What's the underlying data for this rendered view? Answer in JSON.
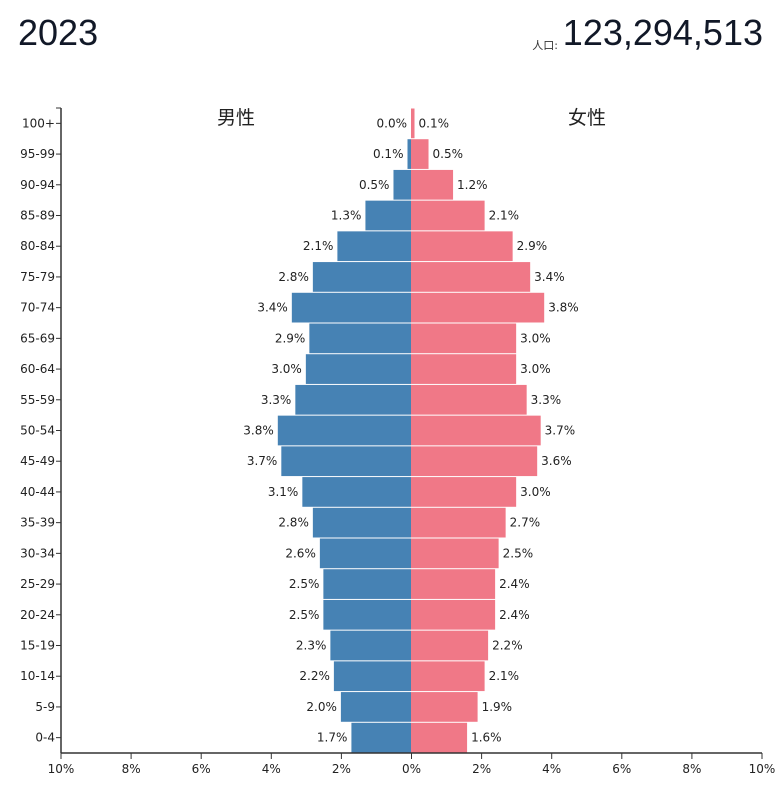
{
  "header": {
    "year": "2023",
    "population_label": "人口:",
    "population": "123,294,513"
  },
  "chart_data": {
    "type": "bar",
    "title": "2023",
    "orientation": "horizontal-population-pyramid",
    "categories": [
      "100+",
      "95-99",
      "90-94",
      "85-89",
      "80-84",
      "75-79",
      "70-74",
      "65-69",
      "60-64",
      "55-59",
      "50-54",
      "45-49",
      "40-44",
      "35-39",
      "30-34",
      "25-29",
      "20-24",
      "15-19",
      "10-14",
      "5-9",
      "0-4"
    ],
    "series": [
      {
        "name": "男性",
        "color": "#4682b4",
        "values": [
          0.0,
          0.1,
          0.5,
          1.3,
          2.1,
          2.8,
          3.4,
          2.9,
          3.0,
          3.3,
          3.8,
          3.7,
          3.1,
          2.8,
          2.6,
          2.5,
          2.5,
          2.3,
          2.2,
          2.0,
          1.7
        ]
      },
      {
        "name": "女性",
        "color": "#f07887",
        "values": [
          0.1,
          0.5,
          1.2,
          2.1,
          2.9,
          3.4,
          3.8,
          3.0,
          3.0,
          3.3,
          3.7,
          3.6,
          3.0,
          2.7,
          2.5,
          2.4,
          2.4,
          2.2,
          2.1,
          1.9,
          1.6
        ]
      }
    ],
    "xlim": [
      -10,
      10
    ],
    "xticks": [
      "10%",
      "8%",
      "6%",
      "4%",
      "2%",
      "0%",
      "2%",
      "4%",
      "6%",
      "8%",
      "10%"
    ],
    "unit": "%"
  }
}
